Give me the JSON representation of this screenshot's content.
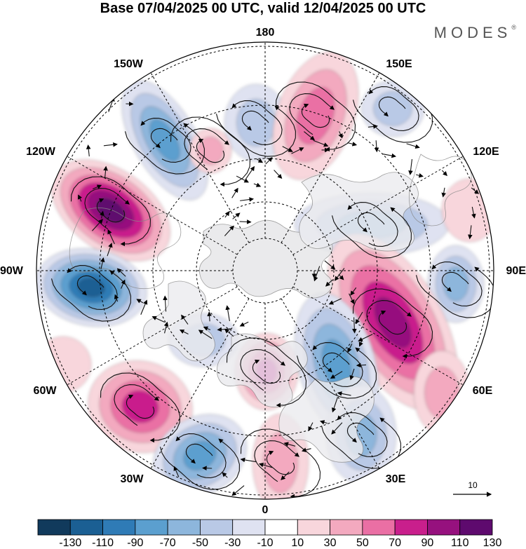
{
  "title": "Base 07/04/2025 00 UTC, valid 12/04/2025 00 UTC",
  "logo": "MODES",
  "logo_mark": "®",
  "map": {
    "projection": "north-polar-stereographic",
    "longitude_labels": {
      "top": "180",
      "bottom": "0",
      "left": "90W",
      "right": "90E",
      "upper_left_1": "150W",
      "upper_left_2": "120W",
      "lower_left_1": "60W",
      "lower_left_2": "30W",
      "upper_right_1": "150E",
      "upper_right_2": "120E",
      "lower_right_1": "60E",
      "lower_right_2": "30E"
    },
    "reference_vector_label": "10"
  },
  "colorbar": {
    "tick_labels": [
      "-130",
      "-110",
      "-90",
      "-70",
      "-50",
      "-30",
      "-10",
      "10",
      "30",
      "50",
      "70",
      "90",
      "110",
      "130"
    ],
    "colors": [
      "#113a5c",
      "#1b5f93",
      "#2f7bb6",
      "#5b9fcf",
      "#8db6dc",
      "#b9c9e6",
      "#dfe2f1",
      "#ffffff",
      "#f8d6dc",
      "#f3a9bf",
      "#ea6fa4",
      "#c91f8c",
      "#96117e",
      "#5e0a6e"
    ]
  },
  "anomaly_features": [
    {
      "name": "strong-positive-120W",
      "sign": "positive",
      "level": "130"
    },
    {
      "name": "strong-negative-90W",
      "sign": "negative",
      "level": "-130"
    },
    {
      "name": "negative-150W",
      "sign": "negative",
      "level": "-90"
    },
    {
      "name": "positive-east-siberia",
      "sign": "positive",
      "level": "70"
    },
    {
      "name": "negative-120E-90E",
      "sign": "negative",
      "level": "-70"
    },
    {
      "name": "strong-positive-60E-90E",
      "sign": "positive",
      "level": "110"
    },
    {
      "name": "negative-30E-scandinavia",
      "sign": "negative",
      "level": "-90"
    },
    {
      "name": "positive-greenland-iceland",
      "sign": "positive",
      "level": "90"
    },
    {
      "name": "positive-60W",
      "sign": "positive",
      "level": "90"
    },
    {
      "name": "negative-30W",
      "sign": "negative",
      "level": "-90"
    },
    {
      "name": "positive-0",
      "sign": "positive",
      "level": "50"
    }
  ]
}
